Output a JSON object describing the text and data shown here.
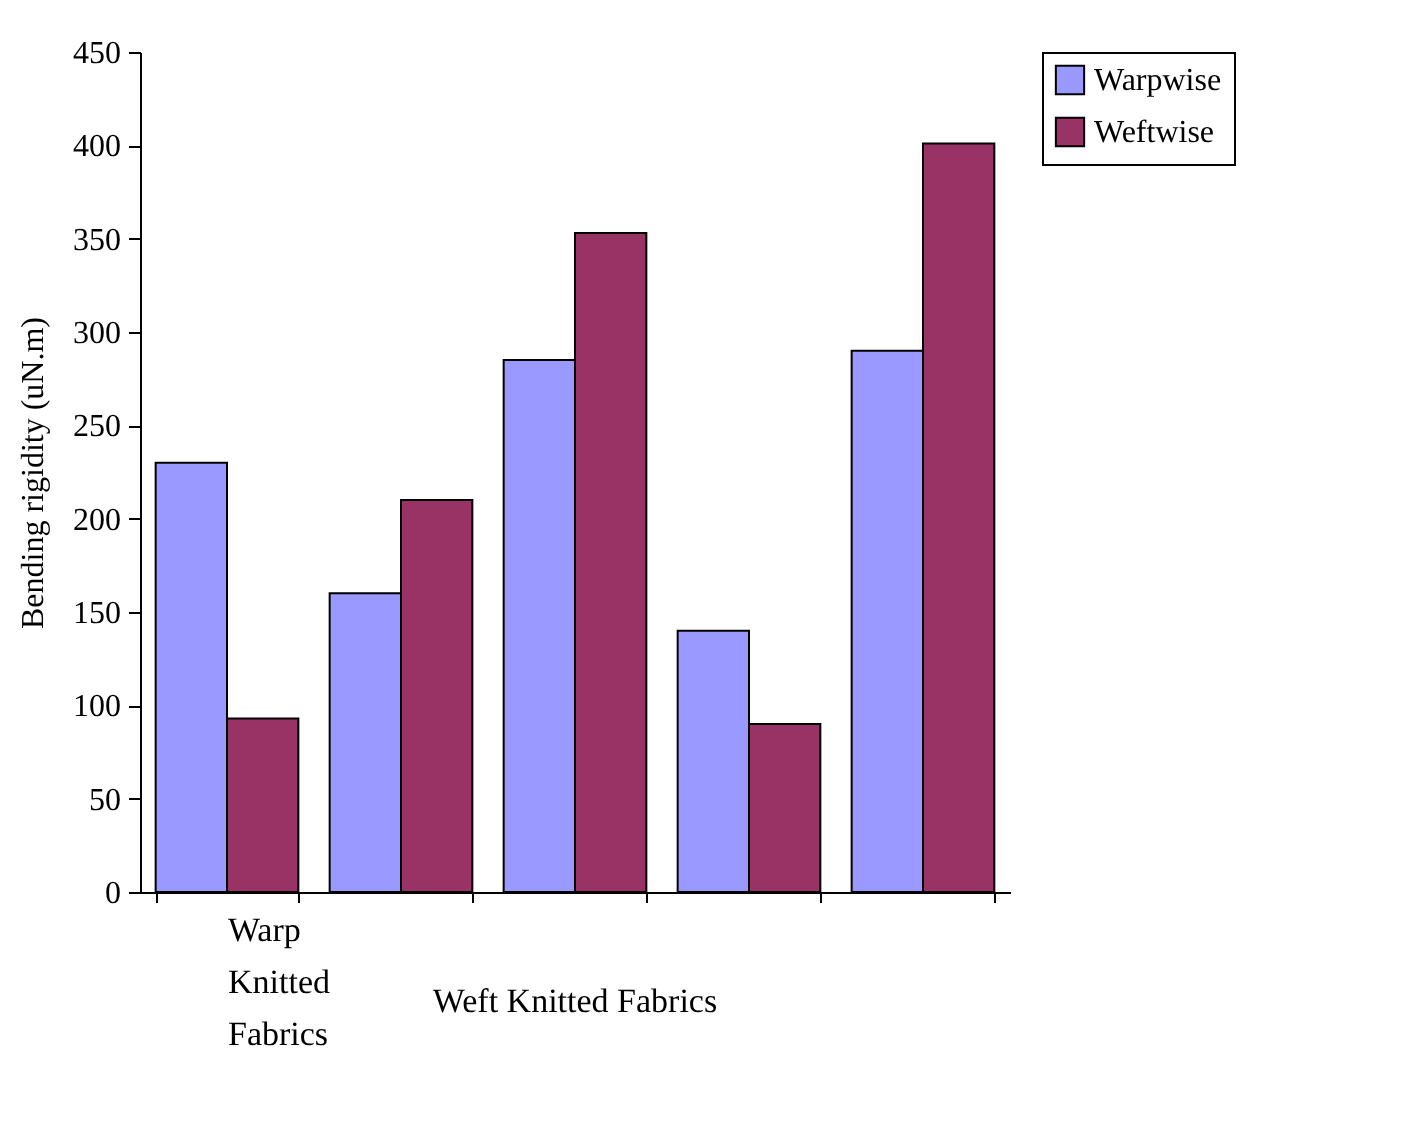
{
  "chart_data": {
    "type": "bar",
    "ylabel": "Bending rigidity (uN.m)",
    "categories": [
      "Warp Knitted Fabrics",
      null,
      null,
      null,
      null
    ],
    "series": [
      {
        "name": "Warpwise",
        "color": "#9999ff",
        "values": [
          230,
          160,
          285,
          140,
          290
        ]
      },
      {
        "name": "Weftwise",
        "color": "#993366",
        "values": [
          93,
          210,
          353,
          90,
          401
        ]
      }
    ],
    "ylim": [
      0,
      450
    ],
    "yticks": [
      0,
      50,
      100,
      150,
      200,
      250,
      300,
      350,
      400,
      450
    ],
    "annotations": [
      "Weft Knitted Fabrics"
    ],
    "grid": false,
    "legend": "right"
  }
}
